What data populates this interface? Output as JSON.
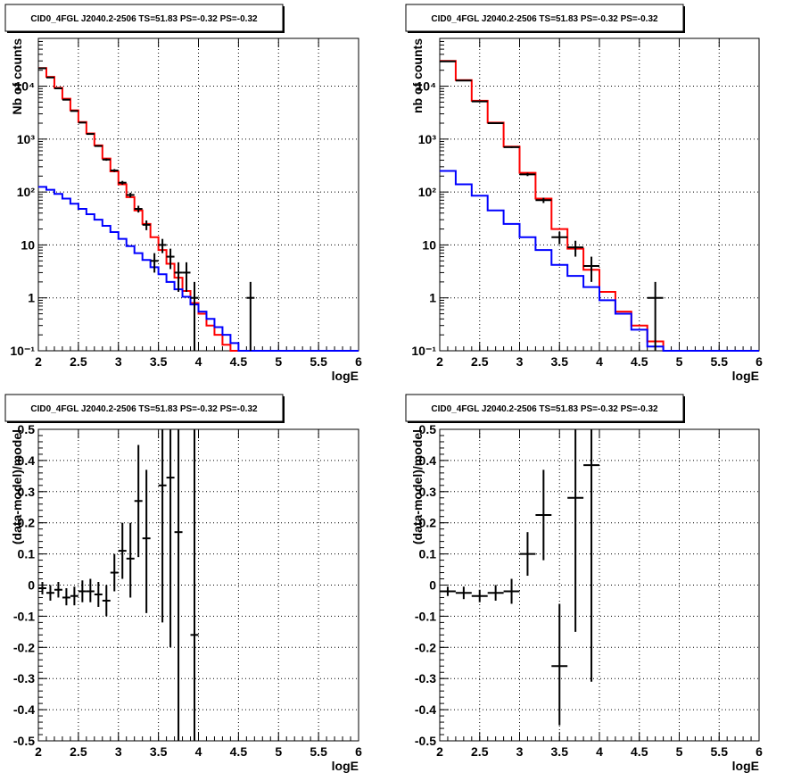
{
  "panel_title": "CID0_4FGL J2040.2-2506 TS=51.83 PS=-0.32 PS=-0.32",
  "colors": {
    "data": "#000000",
    "total_model": "#ff0000",
    "background_model": "#0000ff",
    "grid": "#000000"
  },
  "chart_data": [
    {
      "type": "line",
      "title": "CID0_4FGL J2040.2-2506 TS=51.83 PS=-0.32 PS=-0.32",
      "xlabel": "logE",
      "ylabel": "Nb of counts",
      "xlim": [
        2,
        6
      ],
      "ylim": [
        0.1,
        80000
      ],
      "yscale": "log",
      "grid": true,
      "x_ticks": [
        "2",
        "2.5",
        "3",
        "3.5",
        "4",
        "4.5",
        "5",
        "5.5",
        "6"
      ],
      "y_ticks": [
        {
          "value": 0.1,
          "label": "10⁻¹"
        },
        {
          "value": 1,
          "label": "1"
        },
        {
          "value": 10,
          "label": "10"
        },
        {
          "value": 100,
          "label": "10²"
        },
        {
          "value": 1000,
          "label": "10³"
        },
        {
          "value": 10000,
          "label": "10⁴"
        }
      ],
      "bin_edges": [
        2.0,
        2.1,
        2.2,
        2.3,
        2.4,
        2.5,
        2.6,
        2.7,
        2.8,
        2.9,
        3.0,
        3.1,
        3.2,
        3.3,
        3.4,
        3.5,
        3.6,
        3.7,
        3.8,
        3.9,
        4.0,
        4.1,
        4.2,
        4.3,
        4.4,
        4.5,
        4.6,
        4.7,
        4.8,
        4.9,
        5.0,
        5.1,
        5.2,
        5.3,
        5.4,
        5.5,
        5.6,
        5.7,
        5.8,
        5.9,
        6.0
      ],
      "series": [
        {
          "role": "total_model",
          "style": "step",
          "values": [
            22000,
            15000,
            9300,
            5800,
            3500,
            2100,
            1280,
            760,
            430,
            245,
            140,
            80,
            45,
            25,
            14,
            8,
            4.4,
            2.4,
            1.35,
            0.8,
            0.5,
            0.3,
            0.2,
            0.13,
            0.1,
            0.1,
            0.1,
            0.1,
            0.1,
            0.1,
            0.1,
            0.1,
            0.1,
            0.1,
            0.1,
            0.1,
            0.1,
            0.1,
            0.1,
            0.1
          ]
        },
        {
          "role": "background_model",
          "style": "step",
          "values": [
            125,
            110,
            92,
            75,
            60,
            48,
            38,
            30,
            23,
            17.5,
            13,
            9.5,
            7,
            5.2,
            3.8,
            2.8,
            2,
            1.45,
            1.05,
            0.75,
            0.55,
            0.4,
            0.28,
            0.2,
            0.14,
            0.1,
            0.1,
            0.1,
            0.1,
            0.1,
            0.1,
            0.1,
            0.1,
            0.1,
            0.1,
            0.1,
            0.1,
            0.1,
            0.1,
            0.1
          ]
        },
        {
          "role": "data",
          "style": "errorbar",
          "points": [
            {
              "x": 2.05,
              "y": 21800,
              "lo": 21650,
              "hi": 21950
            },
            {
              "x": 2.15,
              "y": 14600,
              "lo": 14480,
              "hi": 14720
            },
            {
              "x": 2.25,
              "y": 9100,
              "lo": 9000,
              "hi": 9200
            },
            {
              "x": 2.35,
              "y": 5550,
              "lo": 5475,
              "hi": 5625
            },
            {
              "x": 2.45,
              "y": 3400,
              "lo": 3340,
              "hi": 3460
            },
            {
              "x": 2.55,
              "y": 2050,
              "lo": 2005,
              "hi": 2095
            },
            {
              "x": 2.65,
              "y": 1250,
              "lo": 1215,
              "hi": 1285
            },
            {
              "x": 2.75,
              "y": 740,
              "lo": 713,
              "hi": 767
            },
            {
              "x": 2.85,
              "y": 410,
              "lo": 390,
              "hi": 430
            },
            {
              "x": 2.95,
              "y": 255,
              "lo": 239,
              "hi": 271
            },
            {
              "x": 3.05,
              "y": 150,
              "lo": 138,
              "hi": 162
            },
            {
              "x": 3.15,
              "y": 88,
              "lo": 79,
              "hi": 97
            },
            {
              "x": 3.25,
              "y": 48,
              "lo": 41,
              "hi": 55
            },
            {
              "x": 3.35,
              "y": 24,
              "lo": 19,
              "hi": 29
            },
            {
              "x": 3.45,
              "y": 5,
              "lo": 3,
              "hi": 7
            },
            {
              "x": 3.55,
              "y": 10,
              "lo": 7,
              "hi": 13
            },
            {
              "x": 3.65,
              "y": 6,
              "lo": 3.5,
              "hi": 8.5
            },
            {
              "x": 3.75,
              "y": 3,
              "lo": 1.3,
              "hi": 4.7
            },
            {
              "x": 3.85,
              "y": 3,
              "lo": 1.3,
              "hi": 4.7
            },
            {
              "x": 3.95,
              "y": 1,
              "lo": 0.1,
              "hi": 2
            },
            {
              "x": 4.65,
              "y": 1,
              "lo": 0.1,
              "hi": 2
            }
          ]
        }
      ]
    },
    {
      "type": "line",
      "title": "CID0_4FGL J2040.2-2506 TS=51.83 PS=-0.32 PS=-0.32",
      "xlabel": "logE",
      "ylabel": "nb of counts",
      "xlim": [
        2,
        6
      ],
      "ylim": [
        0.1,
        80000
      ],
      "yscale": "log",
      "grid": true,
      "x_ticks": [
        "2",
        "2.5",
        "3",
        "3.5",
        "4",
        "4.5",
        "5",
        "5.5",
        "6"
      ],
      "y_ticks": [
        {
          "value": 0.1,
          "label": "10⁻¹"
        },
        {
          "value": 1,
          "label": "1"
        },
        {
          "value": 10,
          "label": "10"
        },
        {
          "value": 100,
          "label": "10²"
        },
        {
          "value": 1000,
          "label": "10³"
        },
        {
          "value": 10000,
          "label": "10⁴"
        }
      ],
      "bin_edges": [
        2.0,
        2.2,
        2.4,
        2.6,
        2.8,
        3.0,
        3.2,
        3.4,
        3.6,
        3.8,
        4.0,
        4.2,
        4.4,
        4.6,
        4.8,
        5.0,
        5.2,
        5.4,
        5.6,
        5.8,
        6.0
      ],
      "series": [
        {
          "role": "total_model",
          "style": "step",
          "values": [
            30000,
            13000,
            5300,
            2050,
            720,
            230,
            75,
            20,
            8.5,
            3.4,
            1.3,
            0.55,
            0.3,
            0.15,
            0.1,
            0.1,
            0.1,
            0.1,
            0.1,
            0.1
          ]
        },
        {
          "role": "background_model",
          "style": "step",
          "values": [
            250,
            140,
            85,
            45,
            25,
            14,
            8,
            4.2,
            2.6,
            1.6,
            0.9,
            0.5,
            0.25,
            0.12,
            0.1,
            0.1,
            0.1,
            0.1,
            0.1,
            0.1
          ]
        },
        {
          "role": "data",
          "style": "errorbar",
          "points": [
            {
              "x": 2.1,
              "y": 29500,
              "lo": 29330,
              "hi": 29670
            },
            {
              "x": 2.3,
              "y": 12800,
              "lo": 12690,
              "hi": 12910
            },
            {
              "x": 2.5,
              "y": 5150,
              "lo": 5080,
              "hi": 5220
            },
            {
              "x": 2.7,
              "y": 2000,
              "lo": 1955,
              "hi": 2045
            },
            {
              "x": 2.9,
              "y": 705,
              "lo": 679,
              "hi": 731
            },
            {
              "x": 3.1,
              "y": 215,
              "lo": 200,
              "hi": 230
            },
            {
              "x": 3.3,
              "y": 70,
              "lo": 62,
              "hi": 78
            },
            {
              "x": 3.5,
              "y": 14,
              "lo": 10.3,
              "hi": 17.7
            },
            {
              "x": 3.7,
              "y": 9,
              "lo": 6,
              "hi": 12
            },
            {
              "x": 3.9,
              "y": 4,
              "lo": 2,
              "hi": 6
            },
            {
              "x": 4.7,
              "y": 1,
              "lo": 0.1,
              "hi": 2
            }
          ]
        }
      ]
    },
    {
      "type": "scatter",
      "title": "CID0_4FGL J2040.2-2506 TS=51.83 PS=-0.32 PS=-0.32",
      "xlabel": "logE",
      "ylabel": "(data-model)/model",
      "xlim": [
        2,
        6
      ],
      "ylim": [
        -0.5,
        0.5
      ],
      "grid": true,
      "x_ticks": [
        "2",
        "2.5",
        "3",
        "3.5",
        "4",
        "4.5",
        "5",
        "5.5",
        "6"
      ],
      "y_ticks": [
        "-0.5",
        "-0.4",
        "-0.3",
        "-0.2",
        "-0.1",
        "0",
        "0.1",
        "0.2",
        "0.3",
        "0.4",
        "0.5"
      ],
      "bin_width": 0.1,
      "series": [
        {
          "role": "data",
          "style": "errorbar",
          "points": [
            {
              "x": 2.05,
              "y": -0.01,
              "lo": -0.03,
              "hi": 0.01
            },
            {
              "x": 2.15,
              "y": -0.025,
              "lo": -0.05,
              "hi": 0.0
            },
            {
              "x": 2.25,
              "y": -0.015,
              "lo": -0.04,
              "hi": 0.01
            },
            {
              "x": 2.35,
              "y": -0.04,
              "lo": -0.065,
              "hi": -0.01
            },
            {
              "x": 2.45,
              "y": -0.035,
              "lo": -0.065,
              "hi": -0.005
            },
            {
              "x": 2.55,
              "y": -0.02,
              "lo": -0.055,
              "hi": 0.015
            },
            {
              "x": 2.65,
              "y": -0.02,
              "lo": -0.055,
              "hi": 0.02
            },
            {
              "x": 2.75,
              "y": -0.03,
              "lo": -0.07,
              "hi": 0.01
            },
            {
              "x": 2.85,
              "y": -0.05,
              "lo": -0.1,
              "hi": 0.0
            },
            {
              "x": 2.95,
              "y": 0.04,
              "lo": -0.02,
              "hi": 0.1
            },
            {
              "x": 3.05,
              "y": 0.11,
              "lo": 0.02,
              "hi": 0.2
            },
            {
              "x": 3.15,
              "y": 0.085,
              "lo": -0.04,
              "hi": 0.2
            },
            {
              "x": 3.25,
              "y": 0.27,
              "lo": 0.09,
              "hi": 0.45
            },
            {
              "x": 3.35,
              "y": 0.15,
              "lo": -0.09,
              "hi": 0.37
            },
            {
              "x": 3.55,
              "y": 0.32,
              "lo": -0.12,
              "hi": 0.5
            },
            {
              "x": 3.65,
              "y": 0.345,
              "lo": -0.2,
              "hi": 0.5
            },
            {
              "x": 3.75,
              "y": 0.17,
              "lo": -0.5,
              "hi": 0.5
            },
            {
              "x": 3.95,
              "y": -0.16,
              "lo": -0.5,
              "hi": 0.5
            }
          ]
        }
      ]
    },
    {
      "type": "scatter",
      "title": "CID0_4FGL J2040.2-2506 TS=51.83 PS=-0.32 PS=-0.32",
      "xlabel": "logE",
      "ylabel": "(data-model)/model",
      "xlim": [
        2,
        6
      ],
      "ylim": [
        -0.5,
        0.5
      ],
      "grid": true,
      "x_ticks": [
        "2",
        "2.5",
        "3",
        "3.5",
        "4",
        "4.5",
        "5",
        "5.5",
        "6"
      ],
      "y_ticks": [
        "-0.5",
        "-0.4",
        "-0.3",
        "-0.2",
        "-0.1",
        "0",
        "0.1",
        "0.2",
        "0.3",
        "0.4",
        "0.5"
      ],
      "bin_width": 0.2,
      "series": [
        {
          "role": "data",
          "style": "errorbar",
          "points": [
            {
              "x": 2.1,
              "y": -0.02,
              "lo": -0.035,
              "hi": -0.005
            },
            {
              "x": 2.3,
              "y": -0.025,
              "lo": -0.045,
              "hi": -0.005
            },
            {
              "x": 2.5,
              "y": -0.035,
              "lo": -0.055,
              "hi": -0.015
            },
            {
              "x": 2.7,
              "y": -0.025,
              "lo": -0.05,
              "hi": 0.0
            },
            {
              "x": 2.9,
              "y": -0.02,
              "lo": -0.06,
              "hi": 0.02
            },
            {
              "x": 3.1,
              "y": 0.1,
              "lo": 0.03,
              "hi": 0.17
            },
            {
              "x": 3.3,
              "y": 0.225,
              "lo": 0.08,
              "hi": 0.37
            },
            {
              "x": 3.5,
              "y": -0.26,
              "lo": -0.45,
              "hi": -0.06
            },
            {
              "x": 3.7,
              "y": 0.28,
              "lo": -0.15,
              "hi": 0.5
            },
            {
              "x": 3.9,
              "y": 0.385,
              "lo": -0.31,
              "hi": 0.5
            }
          ]
        }
      ]
    }
  ]
}
